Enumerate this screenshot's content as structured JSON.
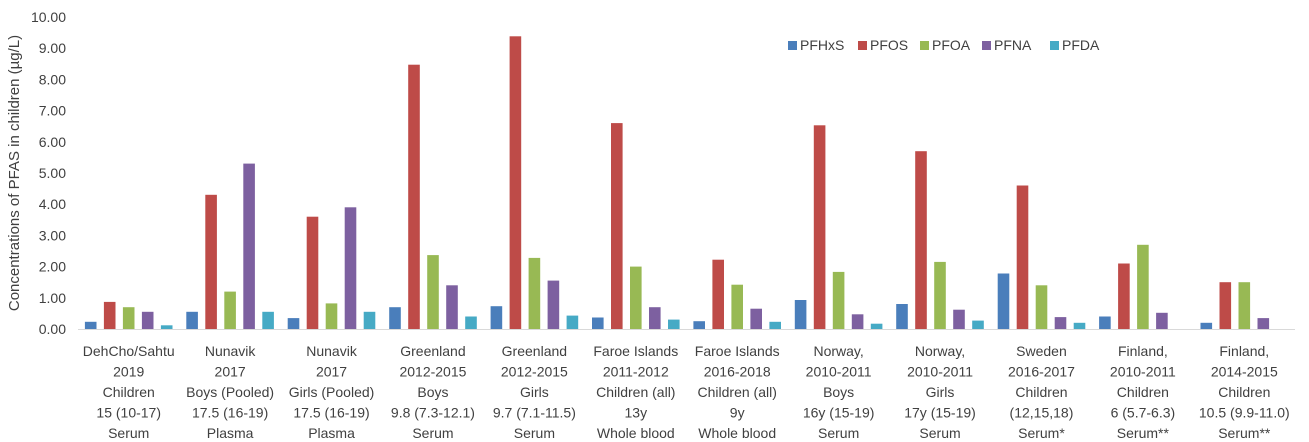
{
  "chart_data": {
    "type": "bar",
    "ylabel": "Concentrations of PFAS in children (µg/L)",
    "ylim": [
      0,
      10
    ],
    "ytick_step": 1,
    "ytick_labels": [
      "0.00",
      "1.00",
      "2.00",
      "3.00",
      "4.00",
      "5.00",
      "6.00",
      "7.00",
      "8.00",
      "9.00",
      "10.00"
    ],
    "grid": false,
    "legend_position": "top-right",
    "categories": [
      [
        "DehCho/Sahtu",
        "2019",
        "Children",
        "15 (10-17)",
        "Serum"
      ],
      [
        "Nunavik",
        "2017",
        "Boys (Pooled)",
        "17.5 (16-19)",
        "Plasma"
      ],
      [
        "Nunavik",
        "2017",
        "Girls (Pooled)",
        "17.5 (16-19)",
        "Plasma"
      ],
      [
        "Greenland",
        "2012-2015",
        "Boys",
        "9.8 (7.3-12.1)",
        "Serum"
      ],
      [
        "Greenland",
        "2012-2015",
        "Girls",
        "9.7 (7.1-11.5)",
        "Serum"
      ],
      [
        "Faroe Islands",
        "2011-2012",
        "Children (all)",
        "13y",
        "Whole blood"
      ],
      [
        "Faroe Islands",
        "2016-2018",
        "Children (all)",
        "9y",
        "Whole blood"
      ],
      [
        "Norway,",
        "2010-2011",
        "Boys",
        "16y (15-19)",
        "Serum"
      ],
      [
        "Norway,",
        "2010-2011",
        "Girls",
        "17y (15-19)",
        "Serum"
      ],
      [
        "Sweden",
        "2016-2017",
        "Children",
        "(12,15,18)",
        "Serum*"
      ],
      [
        "Finland,",
        "2010-2011",
        "Children",
        "6 (5.7-6.3)",
        "Serum**"
      ],
      [
        "Finland,",
        "2014-2015",
        "Children",
        "10.5 (9.9-11.0)",
        "Serum**"
      ]
    ],
    "series": [
      {
        "name": "PFHxS",
        "color": "#4a7ebb",
        "values": [
          0.23,
          0.55,
          0.35,
          0.7,
          0.73,
          0.37,
          0.25,
          0.93,
          0.8,
          1.78,
          0.4,
          0.2
        ]
      },
      {
        "name": "PFOS",
        "color": "#be4b48",
        "values": [
          0.87,
          4.3,
          3.6,
          8.47,
          9.38,
          6.6,
          2.22,
          6.53,
          5.7,
          4.6,
          2.1,
          1.5
        ]
      },
      {
        "name": "PFOA",
        "color": "#98b954",
        "values": [
          0.7,
          1.2,
          0.82,
          2.37,
          2.28,
          2.0,
          1.42,
          1.83,
          2.15,
          1.4,
          2.7,
          1.5
        ]
      },
      {
        "name": "PFNA",
        "color": "#7d60a0",
        "values": [
          0.55,
          5.3,
          3.9,
          1.4,
          1.55,
          0.7,
          0.65,
          0.47,
          0.62,
          0.38,
          0.52,
          0.35
        ]
      },
      {
        "name": "PFDA",
        "color": "#46aac5",
        "values": [
          0.12,
          0.55,
          0.55,
          0.4,
          0.43,
          0.3,
          0.23,
          0.17,
          0.27,
          0.2,
          0.0,
          0.0
        ]
      }
    ]
  },
  "colors": {
    "axis": "#d9d9d9",
    "text": "#404040"
  }
}
